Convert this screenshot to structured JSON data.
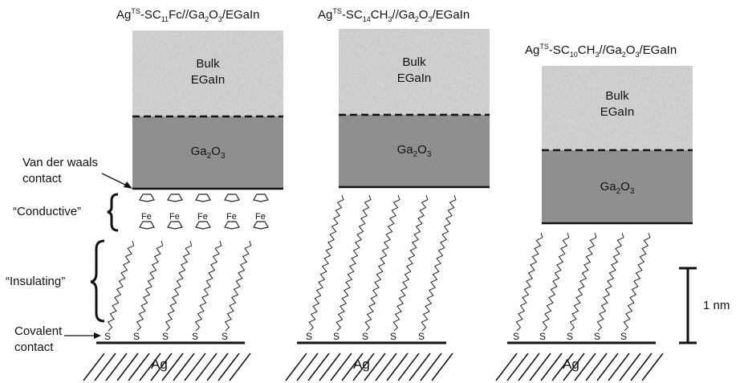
{
  "junctions": [
    {
      "title": {
        "p1": "Ag",
        "sup": "TS",
        "p2": "-SC",
        "sub1": "11",
        "p3": "Fc//Ga",
        "sub2": "2",
        "p4": "O",
        "sub3": "3",
        "p5": "/EGaIn"
      },
      "bulk": [
        "Bulk",
        "EGaIn"
      ],
      "oxide": {
        "base1": "Ga",
        "sub1": "2",
        "base2": "O",
        "sub2": "3"
      },
      "substrate": "Ag",
      "thiol": "S",
      "ferrocene": "Fe"
    },
    {
      "title": {
        "p1": "Ag",
        "sup": "TS",
        "p2": "-SC",
        "sub1": "14",
        "p3": "CH",
        "sub2": "3",
        "p4": "//Ga",
        "sub3": "2",
        "p5": "O",
        "sub4": "3",
        "p6": "/EGaIn"
      },
      "bulk": [
        "Bulk",
        "EGaIn"
      ],
      "oxide": {
        "base1": "Ga",
        "sub1": "2",
        "base2": "O",
        "sub2": "3"
      },
      "substrate": "Ag",
      "thiol": "S"
    },
    {
      "title": {
        "p1": "Ag",
        "sup": "TS",
        "p2": "-SC",
        "sub1": "10",
        "p3": "CH",
        "sub2": "3",
        "p4": "//Ga",
        "sub3": "2",
        "p5": "O",
        "sub4": "3",
        "p6": "/EGaIn"
      },
      "bulk": [
        "Bulk",
        "EGaIn"
      ],
      "oxide": {
        "base1": "Ga",
        "sub1": "2",
        "base2": "O",
        "sub2": "3"
      },
      "substrate": "Ag",
      "thiol": "S"
    }
  ],
  "annotations": {
    "vdw": [
      "Van der waals",
      "contact"
    ],
    "conductive": "“Conductive”",
    "insulating": "“Insulating”",
    "covalent": [
      "Covalent",
      "contact"
    ]
  },
  "scale_bar": {
    "label": "1 nm"
  },
  "colors": {
    "bulk": "#d4d4d4",
    "oxide": "#8f8f8f",
    "line": "#111111"
  }
}
